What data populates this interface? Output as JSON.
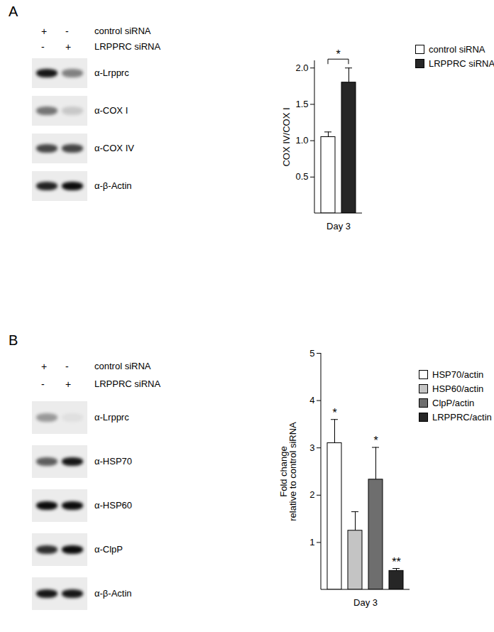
{
  "chart_data": [
    {
      "type": "bar",
      "categories": [
        "Day 3"
      ],
      "series": [
        {
          "name": "control siRNA",
          "color": "#ffffff",
          "values": [
            1.05
          ],
          "error": [
            0.07
          ]
        },
        {
          "name": "LRPPRC siRNA",
          "color": "#262626",
          "values": [
            1.8
          ],
          "error": [
            0.2
          ]
        }
      ],
      "y_label": "COX IV/COX I",
      "ylim": [
        0,
        2.1
      ],
      "yticks": [
        0.5,
        {
          "value": 1,
          "label": "1.0"
        },
        1.5,
        {
          "value": 2,
          "label": "2.0"
        }
      ],
      "annotations": [
        {
          "text": "*",
          "between": [
            "control siRNA",
            "LRPPRC siRNA"
          ]
        }
      ],
      "legend": "right"
    },
    {
      "type": "bar",
      "categories": [
        "Day 3"
      ],
      "series": [
        {
          "name": "HSP70/actin",
          "color": "#ffffff",
          "values": [
            3.1
          ],
          "error": [
            0.5
          ],
          "annotation": "*"
        },
        {
          "name": "HSP60/actin",
          "color": "#c4c4c4",
          "values": [
            1.25
          ],
          "error": [
            0.4
          ]
        },
        {
          "name": "ClpP/actin",
          "color": "#6e6e6e",
          "values": [
            2.33
          ],
          "error": [
            0.68
          ],
          "annotation": "*"
        },
        {
          "name": "LRPPRC/actin",
          "color": "#262626",
          "values": [
            0.4
          ],
          "error": [
            0.05
          ],
          "annotation": "**"
        }
      ],
      "y_label": "Fold change\nrelative to control siRNA",
      "ylim": [
        0,
        5
      ],
      "yticks": [
        1,
        2,
        3,
        4,
        5
      ],
      "legend": "right"
    }
  ],
  "blots": [
    {
      "panel": "A",
      "treatments": [
        {
          "label": "control siRNA",
          "marks": [
            "+",
            "-"
          ]
        },
        {
          "label": "LRPPRC siRNA",
          "marks": [
            "-",
            "+"
          ]
        }
      ],
      "antibodies": [
        {
          "label": "α-Lrpprc",
          "band_intensity": [
            0.9,
            0.45
          ]
        },
        {
          "label": "α-COX I",
          "band_intensity": [
            0.5,
            0.15
          ]
        },
        {
          "label": "α-COX IV",
          "band_intensity": [
            0.7,
            0.7
          ]
        },
        {
          "label": "α-β-Actin",
          "band_intensity": [
            0.85,
            0.95
          ]
        }
      ]
    },
    {
      "panel": "B",
      "treatments": [
        {
          "label": "control siRNA",
          "marks": [
            "+",
            "-"
          ]
        },
        {
          "label": "LRPPRC siRNA",
          "marks": [
            "-",
            "+"
          ]
        }
      ],
      "antibodies": [
        {
          "label": "α-Lrpprc",
          "band_intensity": [
            0.35,
            0.05
          ]
        },
        {
          "label": "α-HSP70",
          "band_intensity": [
            0.6,
            0.9
          ]
        },
        {
          "label": "α-HSP60",
          "band_intensity": [
            0.95,
            0.95
          ]
        },
        {
          "label": "α-ClpP",
          "band_intensity": [
            0.8,
            0.95
          ]
        },
        {
          "label": "α-β-Actin",
          "band_intensity": [
            0.9,
            0.9
          ]
        }
      ]
    }
  ]
}
